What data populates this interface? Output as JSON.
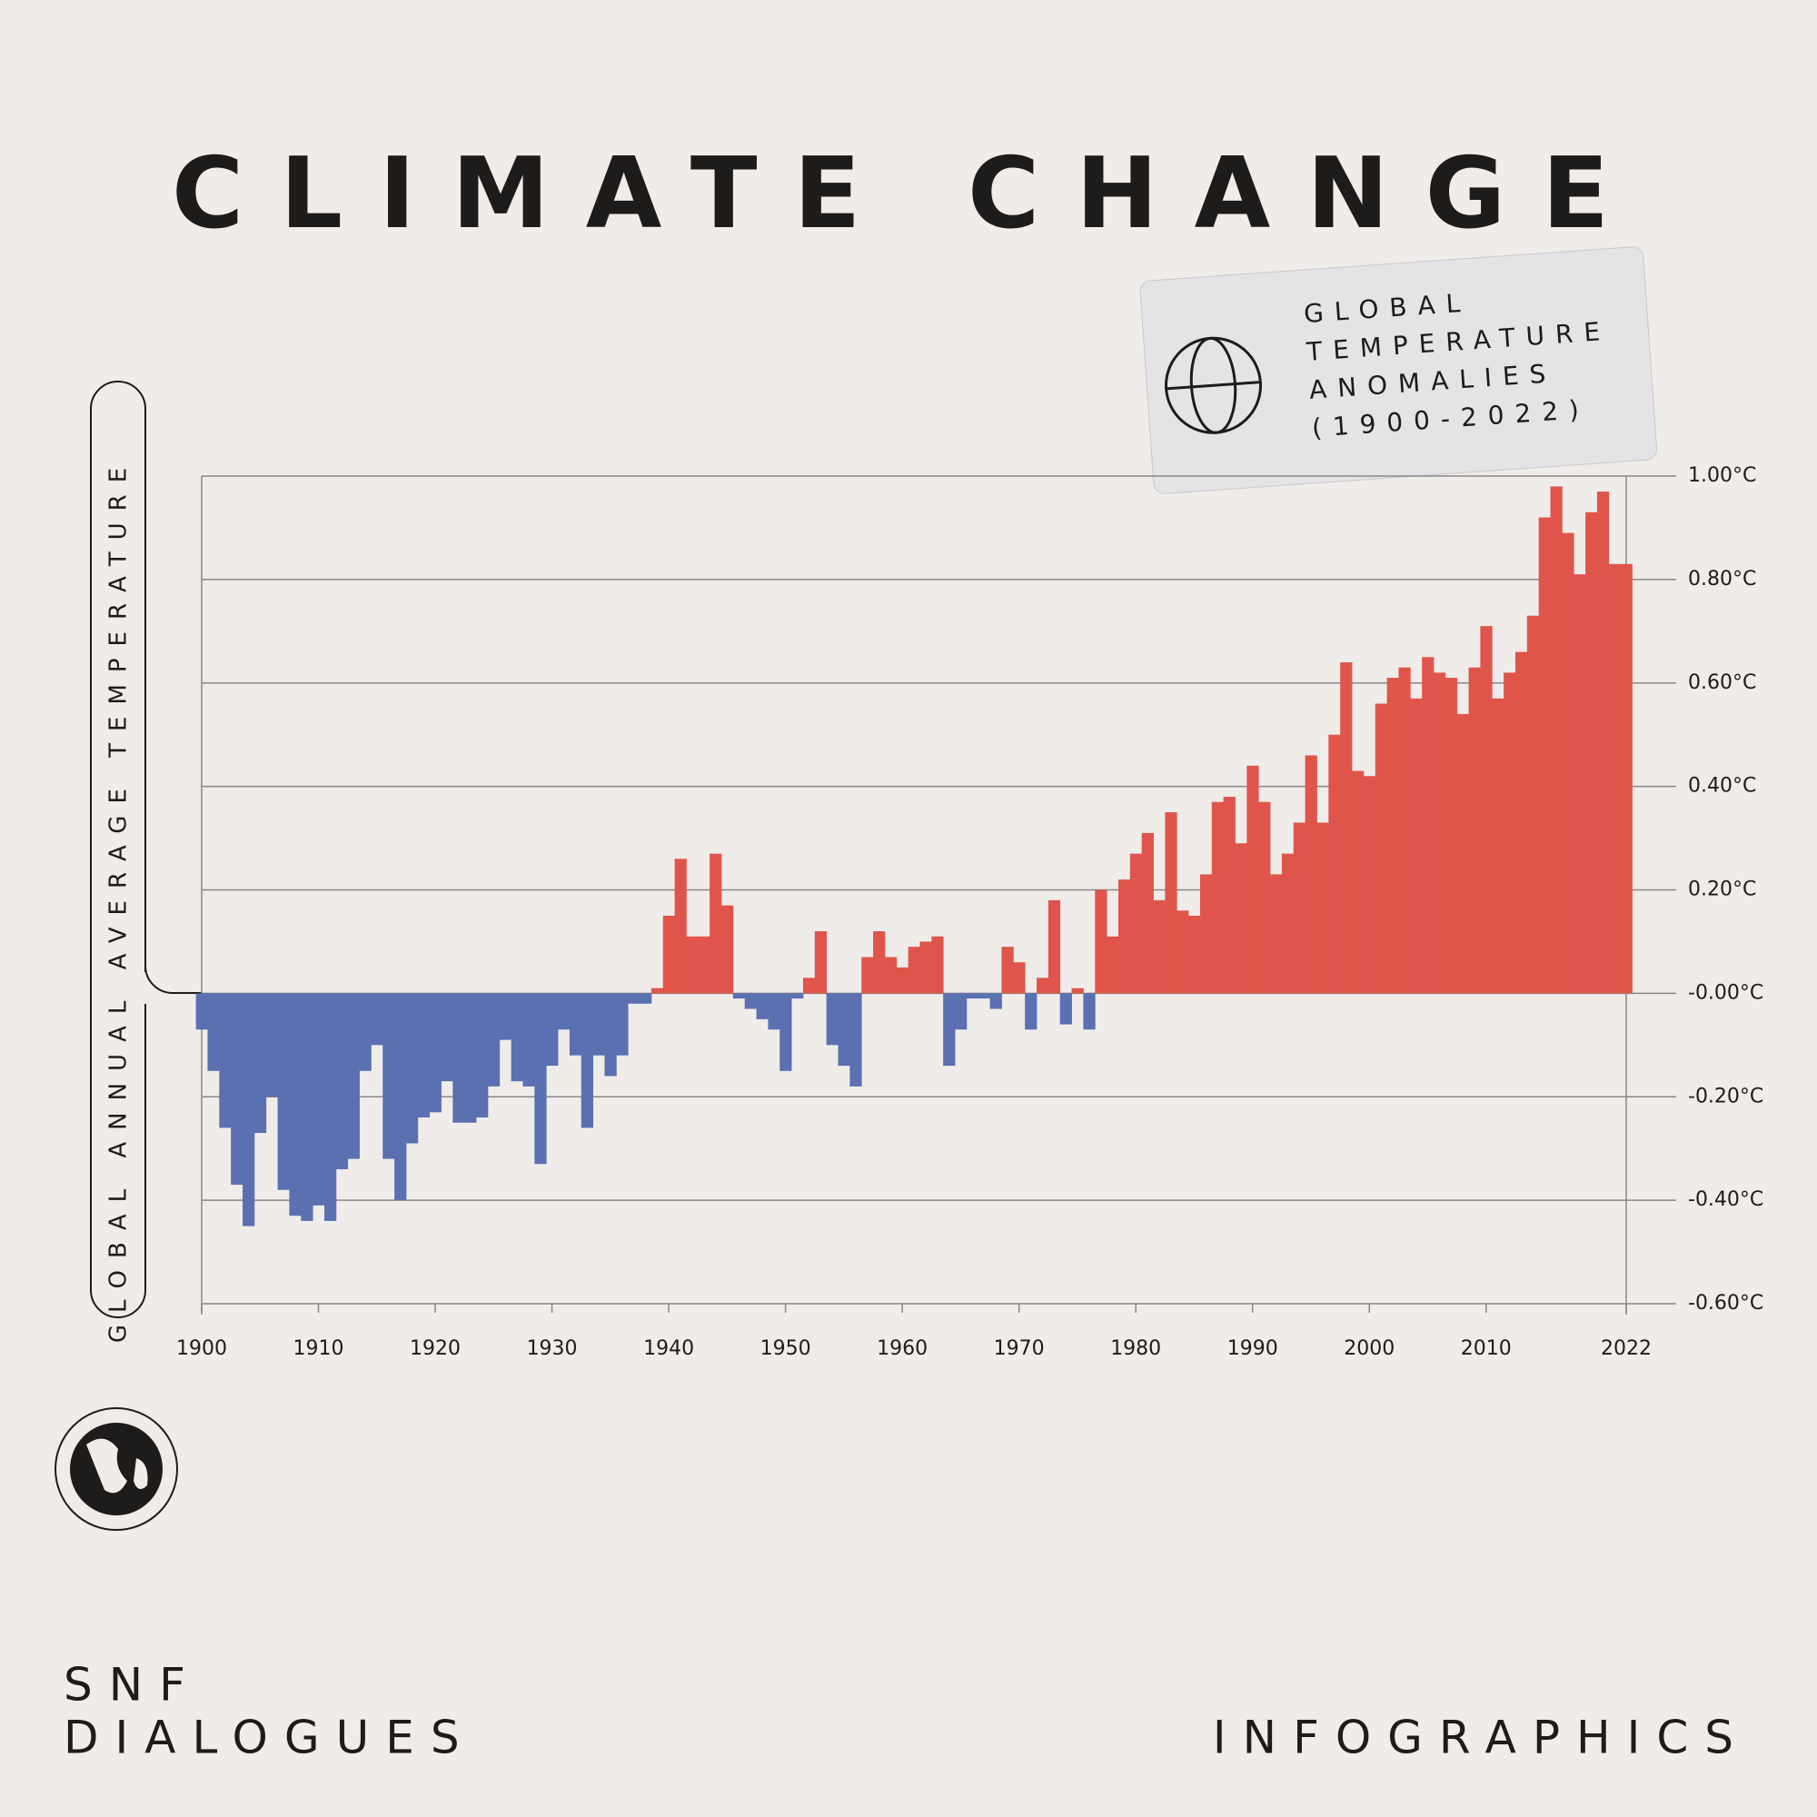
{
  "chart_data": {
    "type": "bar",
    "title": "CLIMATE CHANGE",
    "subtitle_lines": [
      "GLOBAL",
      "TEMPERATURE",
      "ANOMALIES",
      "(1900-2022)"
    ],
    "y_label": "GLOBAL ANNUAL AVERAGE TEMPERATURE",
    "x": [
      1900,
      1901,
      1902,
      1903,
      1904,
      1905,
      1906,
      1907,
      1908,
      1909,
      1910,
      1911,
      1912,
      1913,
      1914,
      1915,
      1916,
      1917,
      1918,
      1919,
      1920,
      1921,
      1922,
      1923,
      1924,
      1925,
      1926,
      1927,
      1928,
      1929,
      1930,
      1931,
      1932,
      1933,
      1934,
      1935,
      1936,
      1937,
      1938,
      1939,
      1940,
      1941,
      1942,
      1943,
      1944,
      1945,
      1946,
      1947,
      1948,
      1949,
      1950,
      1951,
      1952,
      1953,
      1954,
      1955,
      1956,
      1957,
      1958,
      1959,
      1960,
      1961,
      1962,
      1963,
      1964,
      1965,
      1966,
      1967,
      1968,
      1969,
      1970,
      1971,
      1972,
      1973,
      1974,
      1975,
      1976,
      1977,
      1978,
      1979,
      1980,
      1981,
      1982,
      1983,
      1984,
      1985,
      1986,
      1987,
      1988,
      1989,
      1990,
      1991,
      1992,
      1993,
      1994,
      1995,
      1996,
      1997,
      1998,
      1999,
      2000,
      2001,
      2002,
      2003,
      2004,
      2005,
      2006,
      2007,
      2008,
      2009,
      2010,
      2011,
      2012,
      2013,
      2014,
      2015,
      2016,
      2017,
      2018,
      2019,
      2020,
      2021,
      2022
    ],
    "values": [
      -0.07,
      -0.15,
      -0.26,
      -0.37,
      -0.45,
      -0.27,
      -0.2,
      -0.38,
      -0.43,
      -0.44,
      -0.41,
      -0.44,
      -0.34,
      -0.32,
      -0.15,
      -0.1,
      -0.32,
      -0.4,
      -0.29,
      -0.24,
      -0.23,
      -0.17,
      -0.25,
      -0.25,
      -0.24,
      -0.18,
      -0.09,
      -0.17,
      -0.18,
      -0.33,
      -0.14,
      -0.07,
      -0.12,
      -0.26,
      -0.12,
      -0.16,
      -0.12,
      -0.02,
      -0.02,
      0.01,
      0.15,
      0.26,
      0.11,
      0.11,
      0.27,
      0.17,
      -0.01,
      -0.03,
      -0.05,
      -0.07,
      -0.15,
      -0.01,
      0.03,
      0.12,
      -0.1,
      -0.14,
      -0.18,
      0.07,
      0.12,
      0.07,
      0.05,
      0.09,
      0.1,
      0.11,
      -0.14,
      -0.07,
      -0.01,
      -0.01,
      -0.03,
      0.09,
      0.06,
      -0.07,
      0.03,
      0.18,
      -0.06,
      0.01,
      -0.07,
      0.2,
      0.11,
      0.22,
      0.27,
      0.31,
      0.18,
      0.35,
      0.16,
      0.15,
      0.23,
      0.37,
      0.38,
      0.29,
      0.44,
      0.37,
      0.23,
      0.27,
      0.33,
      0.46,
      0.33,
      0.5,
      0.64,
      0.43,
      0.42,
      0.56,
      0.61,
      0.63,
      0.57,
      0.65,
      0.62,
      0.61,
      0.54,
      0.63,
      0.71,
      0.57,
      0.62,
      0.66,
      0.73,
      0.92,
      0.98,
      0.89,
      0.81,
      0.93,
      0.97,
      0.83,
      0.83
    ],
    "positive_color": "#e0554b",
    "negative_color": "#5b70b1",
    "xlim": [
      1900,
      2022
    ],
    "xticks": [
      1900,
      1910,
      1920,
      1930,
      1940,
      1950,
      1960,
      1970,
      1980,
      1990,
      2000,
      2010,
      2022
    ],
    "ylim": [
      -0.6,
      1.0
    ],
    "yticks": [
      {
        "value": 1.0,
        "label": "1.00°C"
      },
      {
        "value": 0.8,
        "label": "0.80°C"
      },
      {
        "value": 0.6,
        "label": "0.60°C"
      },
      {
        "value": 0.4,
        "label": "0.40°C"
      },
      {
        "value": 0.2,
        "label": "0.20°C"
      },
      {
        "value": 0,
        "label": "-0.00°C"
      },
      {
        "value": -0.2,
        "label": "-0.20°C"
      },
      {
        "value": -0.4,
        "label": "-0.40°C"
      },
      {
        "value": -0.6,
        "label": "-0.60°C"
      }
    ],
    "grid": true
  },
  "branding": {
    "left_top": "SNF",
    "left_bottom": "DIALOGUES",
    "right": "INFOGRAPHICS"
  }
}
